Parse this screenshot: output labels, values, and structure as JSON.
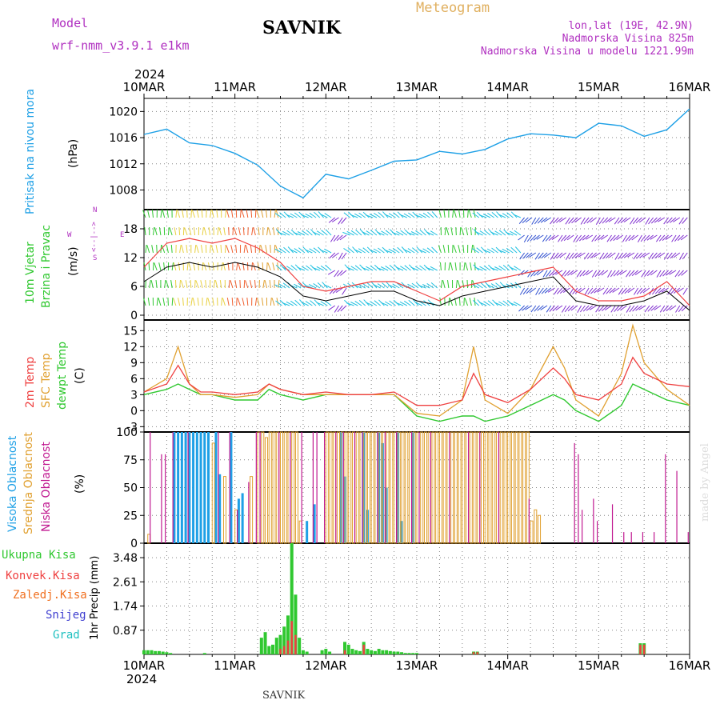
{
  "header": {
    "model_label": "Model",
    "model_name": "wrf-nmm_v3.9.1 e1km",
    "station": "SAVNIK",
    "product": "Meteogram",
    "lonlat": "lon,lat (19E, 42.9N)",
    "elevation": "Nadmorska Visina 825m",
    "model_elevation": "Nadmorska Visina u modelu 1221.99m"
  },
  "footer": {
    "station": "SAVNIK",
    "credit": "made by Angel"
  },
  "axis": {
    "year": "2024",
    "dates": [
      "10MAR",
      "11MAR",
      "12MAR",
      "13MAR",
      "14MAR",
      "15MAR",
      "16MAR"
    ]
  },
  "colors": {
    "pressure": "#1ea0e6",
    "temp2m": "#ef4040",
    "sfc": "#e0a030",
    "dewpt": "#30c830",
    "high": "#1ea0e6",
    "mid": "#e0a030",
    "low": "#c01890",
    "total": "#30c830",
    "conv": "#ef4040",
    "frozen": "#f07020",
    "snow": "#4040d0",
    "grad": "#20c0c0",
    "dir_label": "#b030c0"
  },
  "panels": {
    "pressure": {
      "ylabel_colored": "Pritisak na nivou mora",
      "unit": "(hPa)",
      "ticks": [
        "1020",
        "1016",
        "1012",
        "1008"
      ]
    },
    "wind": {
      "ylabel_line1": "10m Vjetar",
      "ylabel_line2": "Brzina i Pravac",
      "unit": "(m/s)",
      "ticks": [
        "18",
        "12",
        "6",
        "0"
      ],
      "compass": "N",
      "compass_w": "W",
      "compass_e": "E",
      "compass_s": "S",
      "compass_arrows": "<--|-->"
    },
    "temperature": {
      "labels": [
        "2m Temp",
        "SFC Temp",
        "dewpt Temp"
      ],
      "unit": "(C)",
      "ticks": [
        "15",
        "12",
        "9",
        "6",
        "3",
        "0",
        "-3"
      ]
    },
    "clouds": {
      "labels": [
        "Visoka Oblacnost",
        "Srednja Oblacnost",
        "Niska Oblacnost"
      ],
      "unit": "(%)",
      "ticks": [
        "100",
        "75",
        "50",
        "25",
        "0"
      ]
    },
    "precip": {
      "labels": [
        "Ukupna Kisa",
        "Konvek.Kisa",
        "Zaledj.Kisa",
        "Snijeg",
        "Grad"
      ],
      "ylabel": "1hr Precip (mm)",
      "ticks": [
        "3.48",
        "2.61",
        "1.74",
        "0.87"
      ]
    }
  },
  "chart_data": [
    {
      "type": "line",
      "name": "pressure",
      "xlabel": "",
      "ylabel": "Pritisak na nivou mora (hPa)",
      "x_hours": [
        0,
        6,
        12,
        18,
        24,
        30,
        36,
        42,
        48,
        54,
        60,
        66,
        72,
        78,
        84,
        90,
        96,
        102,
        108,
        114,
        120,
        126,
        132,
        138,
        144
      ],
      "series": [
        {
          "name": "Pritisak na nivou mora",
          "values": [
            1016.5,
            1017.3,
            1015.2,
            1014.8,
            1013.6,
            1011.8,
            1008.6,
            1006.8,
            1010.4,
            1009.7,
            1011.0,
            1012.4,
            1012.6,
            1013.9,
            1013.5,
            1014.2,
            1015.8,
            1016.6,
            1016.4,
            1016.0,
            1018.2,
            1017.8,
            1016.2,
            1017.2,
            1020.4
          ]
        }
      ],
      "ylim": [
        1005,
        1022
      ]
    },
    {
      "type": "line",
      "name": "wind",
      "xlabel": "",
      "ylabel": "10m Vjetar Brzina i Pravac (m/s)",
      "x_hours": [
        0,
        6,
        12,
        18,
        24,
        30,
        36,
        42,
        48,
        54,
        60,
        66,
        72,
        78,
        84,
        90,
        96,
        102,
        108,
        114,
        120,
        126,
        132,
        138,
        144
      ],
      "series": [
        {
          "name": "speed",
          "values": [
            7,
            10,
            11,
            10,
            11,
            10,
            8,
            4,
            3,
            4,
            5,
            5,
            3,
            2,
            4,
            5,
            6,
            7,
            8,
            3,
            2,
            2,
            3,
            5,
            1
          ]
        },
        {
          "name": "gust",
          "values": [
            10,
            15,
            16,
            15,
            16,
            14,
            11,
            6,
            5,
            6,
            7,
            7,
            5,
            3,
            6,
            7,
            8,
            9,
            10,
            5,
            3,
            3,
            4,
            7,
            2
          ]
        }
      ],
      "ylim": [
        -1,
        22
      ]
    },
    {
      "type": "line",
      "name": "temperature",
      "xlabel": "",
      "ylabel": "(C)",
      "x_hours": [
        0,
        6,
        9,
        12,
        15,
        18,
        24,
        30,
        33,
        36,
        42,
        48,
        54,
        60,
        66,
        72,
        78,
        84,
        87,
        90,
        96,
        102,
        108,
        111,
        114,
        120,
        126,
        129,
        132,
        138,
        144
      ],
      "series": [
        {
          "name": "2m Temp",
          "values": [
            3.5,
            5,
            8.5,
            5,
            3.5,
            3.5,
            3,
            3.5,
            5,
            4,
            3,
            3.5,
            3,
            3,
            3.5,
            1,
            1,
            2,
            7,
            3,
            1.5,
            4,
            8,
            6,
            3,
            2,
            5,
            10,
            7,
            5,
            4.5
          ]
        },
        {
          "name": "SFC Temp",
          "values": [
            3.5,
            6,
            12,
            5,
            3,
            3,
            2.5,
            3,
            5,
            4,
            3,
            3,
            3,
            3,
            3,
            -0.5,
            -1,
            2,
            12,
            2,
            -0.5,
            4,
            12,
            8,
            2,
            -1,
            7,
            16,
            9,
            4,
            1
          ]
        },
        {
          "name": "dewpt Temp",
          "values": [
            3,
            4,
            5,
            4,
            3,
            3,
            2,
            2,
            4,
            3,
            2,
            3,
            3,
            3,
            3,
            -1,
            -2,
            -1,
            -1,
            -2,
            -1,
            1,
            3,
            2,
            0,
            -2,
            1,
            5,
            4,
            2,
            1
          ]
        }
      ],
      "ylim": [
        -4,
        17
      ]
    },
    {
      "type": "bar",
      "name": "clouds",
      "xlabel": "",
      "ylabel": "(%)",
      "series": [
        {
          "name": "Visoka Oblacnost",
          "x_hours": [
            8,
            9,
            10,
            11,
            12,
            13,
            14,
            15,
            16,
            17,
            19,
            20,
            23,
            25,
            26,
            43,
            45,
            52,
            53,
            58,
            59,
            62,
            63,
            64,
            67,
            68,
            71
          ],
          "values": [
            100,
            100,
            100,
            100,
            100,
            100,
            100,
            100,
            100,
            100,
            100,
            62,
            100,
            40,
            45,
            20,
            35,
            100,
            60,
            100,
            30,
            100,
            90,
            50,
            100,
            20,
            100
          ]
        },
        {
          "name": "Srednja Oblacnost",
          "x_hours": [
            1,
            18,
            21,
            24,
            28,
            30,
            31,
            32,
            33,
            34,
            35,
            36,
            37,
            38,
            39,
            40,
            41,
            48,
            49,
            50,
            51,
            52,
            53,
            54,
            55,
            56,
            57,
            58,
            59,
            60,
            61,
            62,
            63,
            64,
            65,
            66,
            67,
            68,
            69,
            70,
            71,
            72,
            73,
            74,
            75,
            76,
            77,
            78,
            79,
            80,
            81,
            82,
            83,
            84,
            85,
            86,
            87,
            88,
            89,
            90,
            91,
            92,
            93,
            94,
            95,
            96,
            97,
            98,
            99,
            100,
            101,
            102,
            103,
            104,
            105,
            106,
            107,
            108,
            109,
            110,
            111,
            112,
            113,
            114,
            115,
            116,
            117,
            118,
            119,
            120,
            121,
            122,
            123,
            124,
            125,
            126,
            127,
            128,
            129,
            130,
            131,
            132,
            133,
            134,
            135,
            136,
            137,
            138,
            139,
            140,
            141,
            142,
            143
          ],
          "values": [
            8,
            90,
            60,
            30,
            60,
            100,
            100,
            95,
            100,
            100,
            100,
            100,
            100,
            100,
            100,
            100,
            20,
            100,
            100,
            100,
            100,
            100,
            100,
            100,
            100,
            100,
            100,
            100,
            100,
            100,
            100,
            100,
            100,
            100,
            100,
            100,
            100,
            100,
            100,
            100,
            100,
            100,
            100,
            100,
            100,
            100,
            100,
            100,
            100,
            100,
            100,
            100,
            100,
            100,
            100,
            100,
            100,
            100,
            100,
            100,
            100,
            100,
            100,
            100,
            100,
            100,
            100,
            100,
            100,
            100,
            100,
            20,
            30,
            25,
            0,
            0,
            0,
            0,
            0,
            0,
            0,
            0,
            0,
            0,
            0,
            0,
            0,
            0,
            0,
            0,
            0,
            0,
            0,
            0,
            0,
            0,
            0,
            0,
            0,
            0,
            0,
            0,
            0,
            0,
            0,
            0,
            0,
            0,
            0,
            0,
            0,
            0,
            0
          ]
        },
        {
          "name": "Niska Oblacnost",
          "x_hours": [
            1,
            4,
            5,
            7,
            11,
            19,
            22,
            24,
            27,
            29,
            30,
            35,
            38,
            41,
            44,
            45,
            47,
            50,
            52,
            55,
            57,
            61,
            63,
            66,
            70,
            72,
            75,
            80,
            85,
            88,
            93,
            101,
            113,
            114,
            115,
            118,
            119,
            123,
            126,
            128,
            131,
            134,
            137,
            140,
            143
          ],
          "values": [
            100,
            80,
            80,
            100,
            100,
            100,
            100,
            30,
            55,
            100,
            100,
            100,
            100,
            100,
            100,
            100,
            100,
            100,
            100,
            100,
            100,
            100,
            100,
            100,
            100,
            100,
            100,
            100,
            100,
            100,
            100,
            40,
            90,
            80,
            30,
            40,
            20,
            35,
            10,
            10,
            10,
            10,
            80,
            65,
            10
          ]
        }
      ],
      "ylim": [
        0,
        100
      ]
    },
    {
      "type": "bar",
      "name": "precip",
      "xlabel": "",
      "ylabel": "1hr Precip (mm)",
      "series": [
        {
          "name": "Ukupna Kisa",
          "x_hours": [
            0,
            1,
            2,
            3,
            4,
            5,
            6,
            7,
            16,
            31,
            32,
            33,
            34,
            35,
            36,
            37,
            38,
            39,
            40,
            41,
            42,
            43,
            47,
            48,
            49,
            53,
            54,
            55,
            56,
            57,
            58,
            59,
            60,
            61,
            62,
            63,
            64,
            65,
            66,
            67,
            68,
            69,
            70,
            71,
            72,
            87,
            88,
            131,
            132
          ],
          "values": [
            0.15,
            0.15,
            0.15,
            0.12,
            0.12,
            0.1,
            0.08,
            0.05,
            0.05,
            0.6,
            0.8,
            0.3,
            0.35,
            0.6,
            0.7,
            1.0,
            1.4,
            4.0,
            2.15,
            0.6,
            0.15,
            0.1,
            0.15,
            0.2,
            0.1,
            0.45,
            0.35,
            0.2,
            0.15,
            0.12,
            0.45,
            0.2,
            0.15,
            0.12,
            0.2,
            0.15,
            0.15,
            0.12,
            0.1,
            0.1,
            0.08,
            0.05,
            0.05,
            0.05,
            0.05,
            0.1,
            0.1,
            0.4,
            0.4
          ]
        },
        {
          "name": "Konvek.Kisa",
          "x_hours": [
            36,
            37,
            38,
            39,
            40,
            53,
            58,
            87,
            88,
            131,
            132
          ],
          "values": [
            0.2,
            0.3,
            0.5,
            1.2,
            0.7,
            0.15,
            0.35,
            0.08,
            0.08,
            0.35,
            0.35
          ]
        },
        {
          "name": "Zaledj.Kisa",
          "x_hours": [],
          "values": []
        },
        {
          "name": "Snijeg",
          "x_hours": [],
          "values": []
        },
        {
          "name": "Grad",
          "x_hours": [],
          "values": []
        }
      ],
      "ylim": [
        0,
        4.0
      ]
    }
  ]
}
